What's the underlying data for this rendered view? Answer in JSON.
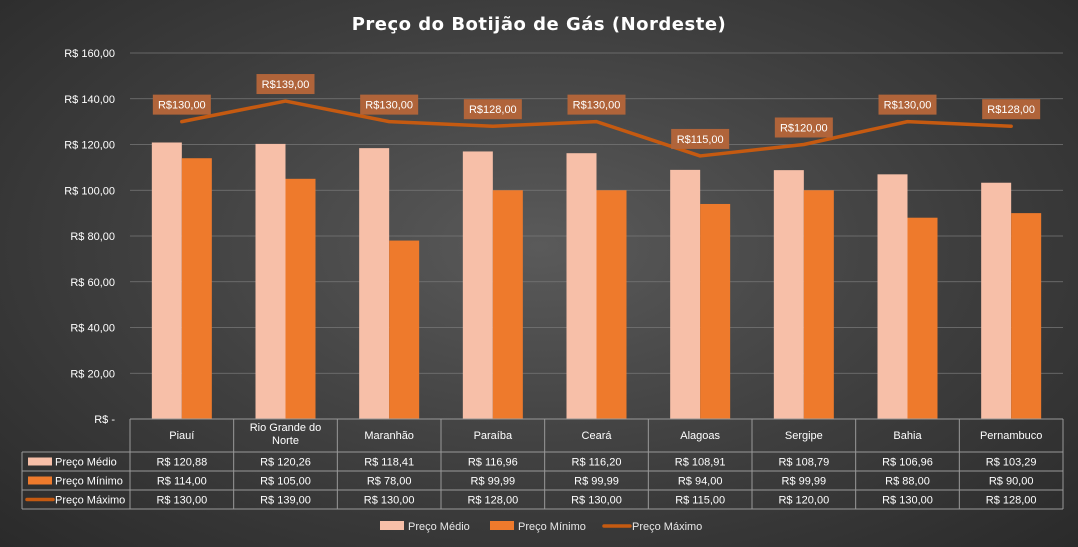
{
  "colors": {
    "preco_medio": "#f7bfa8",
    "preco_minimo": "#ee7a2c",
    "preco_maximo": "#c55a11",
    "label_box": "#b0643a",
    "grid": "#777777",
    "table_line": "#999999"
  },
  "chart_data": {
    "type": "bar",
    "title": "Preço do Botijão de Gás (Nordeste)",
    "xlabel": "",
    "ylabel": "",
    "ylim": [
      0,
      160
    ],
    "ytick_values": [
      0,
      20,
      40,
      60,
      80,
      100,
      120,
      140,
      160
    ],
    "ytick_labels": [
      "R$ -",
      "R$ 20,00",
      "R$ 40,00",
      "R$ 60,00",
      "R$ 80,00",
      "R$ 100,00",
      "R$ 120,00",
      "R$ 140,00",
      "R$ 160,00"
    ],
    "grid": true,
    "legend_position": "bottom",
    "categories": [
      "Piauí",
      "Rio Grande do Norte",
      "Maranhão",
      "Paraíba",
      "Ceará",
      "Alagoas",
      "Sergipe",
      "Bahia",
      "Pernambuco"
    ],
    "series": [
      {
        "name": "Preço Médio",
        "type": "bar",
        "values": [
          120.88,
          120.26,
          118.41,
          116.96,
          116.2,
          108.91,
          108.79,
          106.96,
          103.29
        ],
        "table_labels": [
          "R$ 120,88",
          "R$ 120,26",
          "R$ 118,41",
          "R$ 116,96",
          "R$ 116,20",
          "R$ 108,91",
          "R$ 108,79",
          "R$ 106,96",
          "R$ 103,29"
        ]
      },
      {
        "name": "Preço Mínimo",
        "type": "bar",
        "values": [
          114.0,
          105.0,
          78.0,
          99.99,
          99.99,
          94.0,
          99.99,
          88.0,
          90.0
        ],
        "table_labels": [
          "R$ 114,00",
          "R$ 105,00",
          "R$ 78,00",
          "R$ 99,99",
          "R$ 99,99",
          "R$ 94,00",
          "R$ 99,99",
          "R$ 88,00",
          "R$ 90,00"
        ]
      },
      {
        "name": "Preço Máximo",
        "type": "line",
        "values": [
          130,
          139,
          130,
          128,
          130,
          115,
          120,
          130,
          128
        ],
        "table_labels": [
          "R$ 130,00",
          "R$ 139,00",
          "R$ 130,00",
          "R$ 128,00",
          "R$ 130,00",
          "R$ 115,00",
          "R$ 120,00",
          "R$ 130,00",
          "R$ 128,00"
        ],
        "data_labels": [
          "R$130,00",
          "R$139,00",
          "R$130,00",
          "R$128,00",
          "R$130,00",
          "R$115,00",
          "R$120,00",
          "R$130,00",
          "R$128,00"
        ]
      }
    ]
  }
}
